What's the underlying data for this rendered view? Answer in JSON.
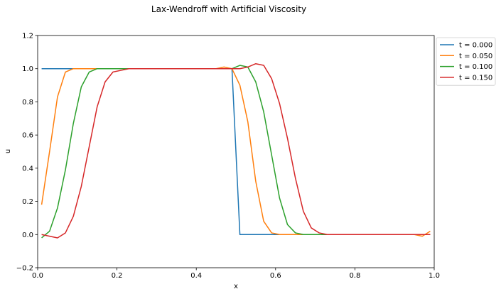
{
  "chart_data": {
    "type": "line",
    "title": "Lax-Wendroff with Artificial Viscosity",
    "xlabel": "x",
    "ylabel": "u",
    "xlim": [
      0.0,
      1.0
    ],
    "ylim": [
      -0.2,
      1.2
    ],
    "xticks": [
      "0.0",
      "0.2",
      "0.4",
      "0.6",
      "0.8",
      "1.0"
    ],
    "yticks": [
      "−0.2",
      "0.0",
      "0.2",
      "0.4",
      "0.6",
      "0.8",
      "1.0",
      "1.2"
    ],
    "xtick_values": [
      0.0,
      0.2,
      0.4,
      0.6,
      0.8,
      1.0
    ],
    "ytick_values": [
      -0.2,
      0.0,
      0.2,
      0.4,
      0.6,
      0.8,
      1.0,
      1.2
    ],
    "grid": false,
    "legend_position": "outside-top-right",
    "series": [
      {
        "name": "t = 0.000",
        "color": "#1f77b4",
        "x": [
          0.01,
          0.49,
          0.51,
          0.99
        ],
        "y": [
          1.0,
          1.0,
          0.0,
          0.0
        ]
      },
      {
        "name": "t = 0.050",
        "color": "#ff7f0e",
        "x": [
          0.01,
          0.03,
          0.05,
          0.07,
          0.09,
          0.11,
          0.13,
          0.15,
          0.17,
          0.21,
          0.25,
          0.45,
          0.47,
          0.49,
          0.51,
          0.53,
          0.55,
          0.57,
          0.59,
          0.61,
          0.65,
          0.95,
          0.97,
          0.99
        ],
        "y": [
          0.18,
          0.5,
          0.83,
          0.98,
          1.0,
          1.0,
          1.0,
          1.0,
          1.0,
          1.0,
          1.0,
          1.0,
          1.01,
          1.0,
          0.9,
          0.68,
          0.32,
          0.08,
          0.01,
          0.0,
          0.0,
          0.0,
          -0.01,
          0.02
        ]
      },
      {
        "name": "t = 0.100",
        "color": "#2ca02c",
        "x": [
          0.01,
          0.03,
          0.05,
          0.07,
          0.09,
          0.11,
          0.13,
          0.15,
          0.17,
          0.19,
          0.21,
          0.25,
          0.45,
          0.47,
          0.49,
          0.51,
          0.53,
          0.55,
          0.57,
          0.59,
          0.61,
          0.63,
          0.65,
          0.67,
          0.69,
          0.75,
          0.95,
          0.97,
          0.99
        ],
        "y": [
          -0.02,
          0.02,
          0.16,
          0.39,
          0.67,
          0.89,
          0.98,
          1.0,
          1.0,
          1.0,
          1.0,
          1.0,
          1.0,
          1.0,
          1.0,
          1.02,
          1.01,
          0.92,
          0.74,
          0.48,
          0.22,
          0.06,
          0.01,
          0.0,
          0.0,
          0.0,
          0.0,
          0.0,
          0.0
        ]
      },
      {
        "name": "t = 0.150",
        "color": "#d62728",
        "x": [
          0.01,
          0.03,
          0.05,
          0.07,
          0.09,
          0.11,
          0.13,
          0.15,
          0.17,
          0.19,
          0.21,
          0.23,
          0.25,
          0.45,
          0.47,
          0.49,
          0.51,
          0.53,
          0.55,
          0.57,
          0.59,
          0.61,
          0.63,
          0.65,
          0.67,
          0.69,
          0.71,
          0.73,
          0.75,
          0.95,
          0.97,
          0.99
        ],
        "y": [
          0.0,
          -0.01,
          -0.02,
          0.01,
          0.11,
          0.29,
          0.53,
          0.77,
          0.92,
          0.98,
          0.99,
          1.0,
          1.0,
          1.0,
          1.0,
          1.0,
          1.0,
          1.01,
          1.03,
          1.02,
          0.94,
          0.79,
          0.58,
          0.34,
          0.14,
          0.04,
          0.01,
          0.0,
          0.0,
          0.0,
          0.0,
          0.0
        ]
      }
    ]
  }
}
